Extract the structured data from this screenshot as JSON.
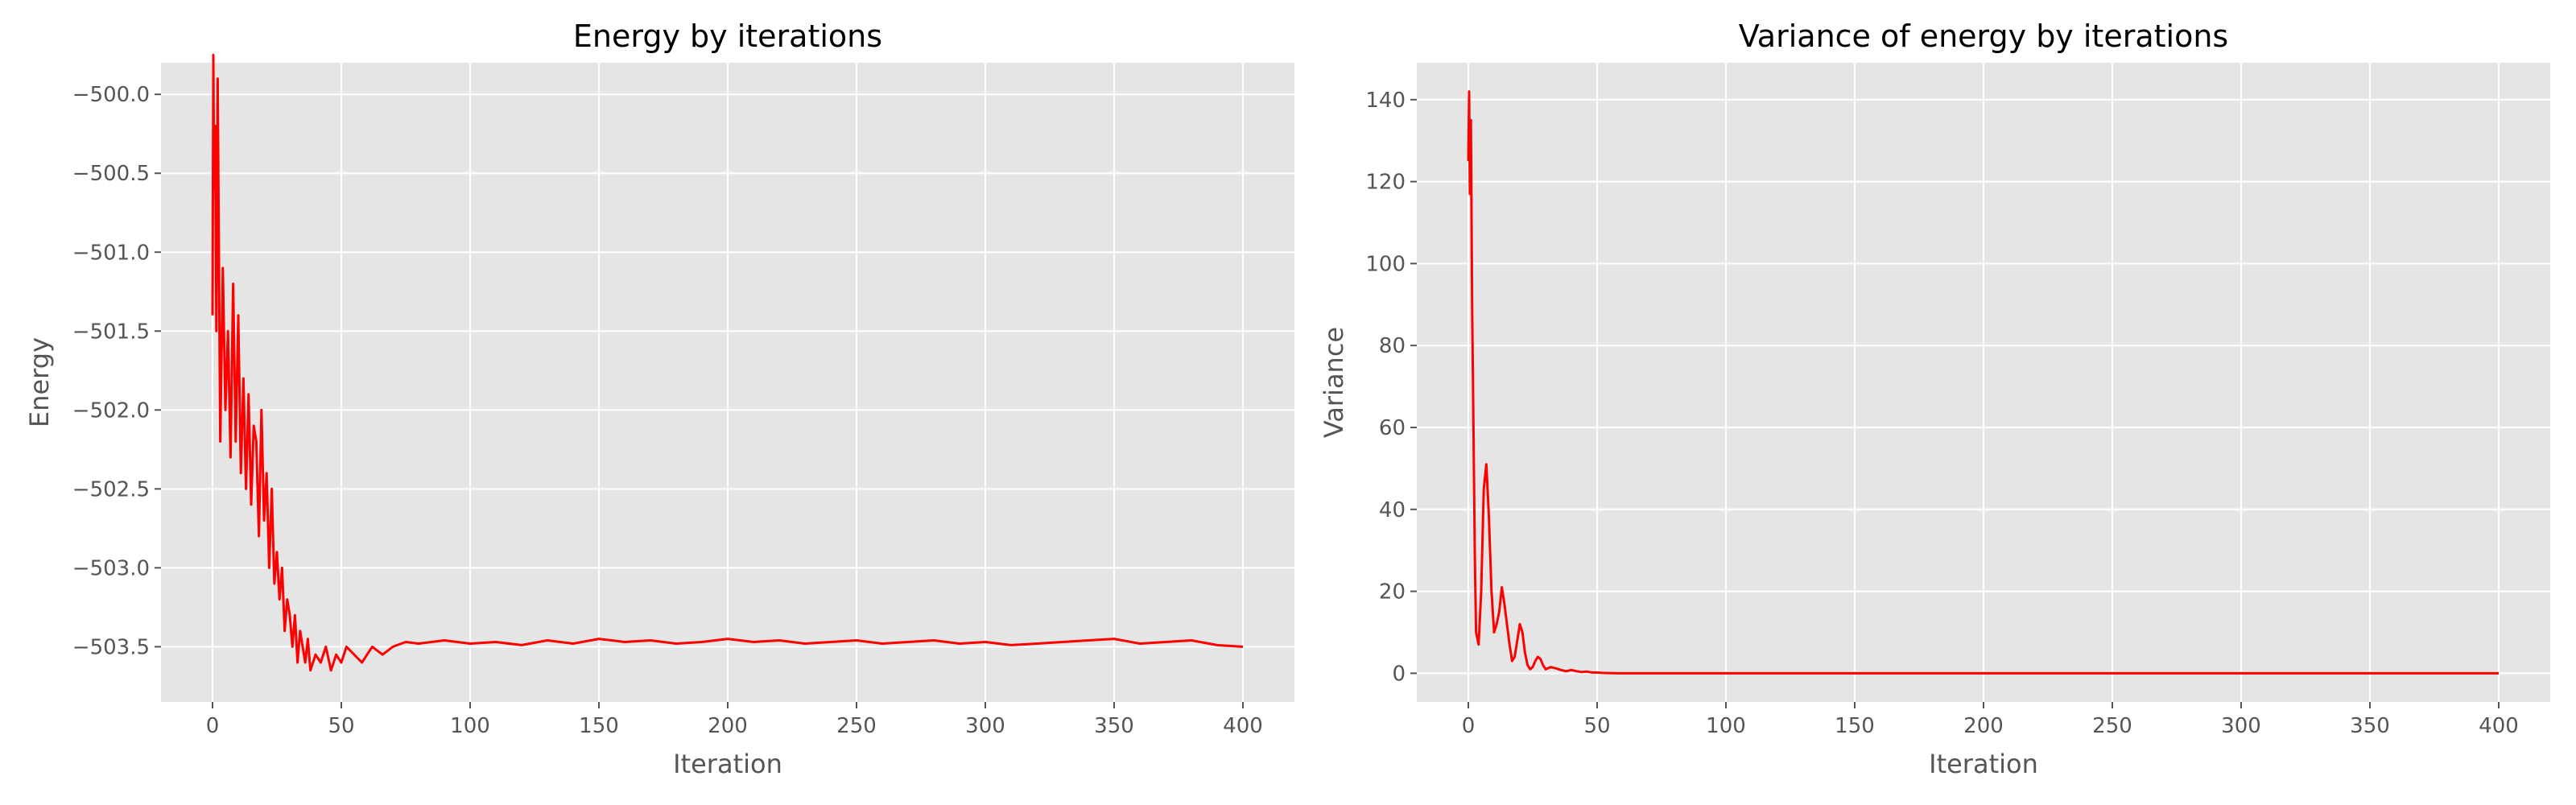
{
  "chart_data": [
    {
      "type": "line",
      "title": "Energy by iterations",
      "xlabel": "Iteration",
      "ylabel": "Energy",
      "xlim": [
        -20,
        420
      ],
      "ylim": [
        -503.85,
        -499.8
      ],
      "xticks": [
        0,
        50,
        100,
        150,
        200,
        250,
        300,
        350,
        400
      ],
      "yticks": [
        -500.0,
        -500.5,
        -501.0,
        -501.5,
        -502.0,
        -502.5,
        -503.0,
        -503.5
      ],
      "ytick_labels": [
        "−500.0",
        "−500.5",
        "−501.0",
        "−501.5",
        "−502.0",
        "−502.5",
        "−503.0",
        "−503.5"
      ],
      "xtick_labels": [
        "0",
        "50",
        "100",
        "150",
        "200",
        "250",
        "300",
        "350",
        "400"
      ],
      "grid": true,
      "series": [
        {
          "color": "#ff0000",
          "x": [
            0,
            0.3,
            0.6,
            1,
            1.5,
            2,
            3,
            4,
            5,
            6,
            7,
            8,
            9,
            10,
            11,
            12,
            13,
            14,
            15,
            16,
            17,
            18,
            19,
            20,
            21,
            22,
            23,
            24,
            25,
            26,
            27,
            28,
            29,
            30,
            31,
            32,
            33,
            34,
            35,
            36,
            37,
            38,
            40,
            42,
            44,
            46,
            48,
            50,
            52,
            55,
            58,
            62,
            66,
            70,
            75,
            80,
            90,
            100,
            110,
            120,
            130,
            140,
            150,
            160,
            170,
            180,
            190,
            200,
            210,
            220,
            230,
            240,
            250,
            260,
            270,
            280,
            290,
            300,
            310,
            320,
            330,
            340,
            350,
            360,
            370,
            380,
            390,
            400
          ],
          "values": [
            -501.4,
            -499.75,
            -500.6,
            -500.2,
            -501.5,
            -499.9,
            -502.2,
            -501.1,
            -502.0,
            -501.5,
            -502.3,
            -501.2,
            -502.2,
            -501.4,
            -502.4,
            -501.8,
            -502.5,
            -501.9,
            -502.6,
            -502.1,
            -502.2,
            -502.8,
            -502.0,
            -502.7,
            -502.4,
            -503.0,
            -502.5,
            -503.1,
            -502.9,
            -503.2,
            -503.0,
            -503.4,
            -503.2,
            -503.3,
            -503.5,
            -503.3,
            -503.6,
            -503.4,
            -503.5,
            -503.6,
            -503.45,
            -503.65,
            -503.55,
            -503.6,
            -503.5,
            -503.65,
            -503.55,
            -503.6,
            -503.5,
            -503.55,
            -503.6,
            -503.5,
            -503.55,
            -503.5,
            -503.47,
            -503.48,
            -503.46,
            -503.48,
            -503.47,
            -503.49,
            -503.46,
            -503.48,
            -503.45,
            -503.47,
            -503.46,
            -503.48,
            -503.47,
            -503.45,
            -503.47,
            -503.46,
            -503.48,
            -503.47,
            -503.46,
            -503.48,
            -503.47,
            -503.46,
            -503.48,
            -503.47,
            -503.49,
            -503.48,
            -503.47,
            -503.46,
            -503.45,
            -503.48,
            -503.47,
            -503.46,
            -503.49,
            -503.5
          ]
        }
      ]
    },
    {
      "type": "line",
      "title": "Variance of energy by iterations",
      "xlabel": "Iteration",
      "ylabel": "Variance",
      "xlim": [
        -20,
        420
      ],
      "ylim": [
        -7,
        149
      ],
      "xticks": [
        0,
        50,
        100,
        150,
        200,
        250,
        300,
        350,
        400
      ],
      "yticks": [
        0,
        20,
        40,
        60,
        80,
        100,
        120,
        140
      ],
      "ytick_labels": [
        "0",
        "20",
        "40",
        "60",
        "80",
        "100",
        "120",
        "140"
      ],
      "xtick_labels": [
        "0",
        "50",
        "100",
        "150",
        "200",
        "250",
        "300",
        "350",
        "400"
      ],
      "grid": true,
      "series": [
        {
          "color": "#ff0000",
          "x": [
            0,
            0.3,
            0.6,
            1,
            1.5,
            2,
            2.5,
            3,
            4,
            5,
            6,
            7,
            8,
            9,
            10,
            11,
            12,
            13,
            14,
            15,
            16,
            17,
            18,
            19,
            20,
            21,
            22,
            23,
            24,
            25,
            26,
            27,
            28,
            29,
            30,
            32,
            34,
            36,
            38,
            40,
            42,
            44,
            46,
            48,
            50,
            52,
            55,
            58,
            62,
            70,
            80,
            100,
            150,
            200,
            250,
            300,
            350,
            400
          ],
          "values": [
            125,
            142,
            117,
            135,
            88,
            60,
            30,
            10,
            7,
            20,
            45,
            51,
            38,
            20,
            10,
            12,
            15,
            21,
            17,
            12,
            7,
            3,
            4,
            8,
            12,
            10,
            5,
            2,
            1,
            1.5,
            3,
            4,
            3.5,
            2,
            1,
            1.5,
            1.2,
            0.8,
            0.5,
            0.8,
            0.5,
            0.3,
            0.4,
            0.2,
            0.2,
            0.1,
            0.05,
            0,
            0,
            0,
            0,
            0,
            0,
            0,
            0,
            0,
            0,
            0
          ]
        }
      ]
    }
  ]
}
